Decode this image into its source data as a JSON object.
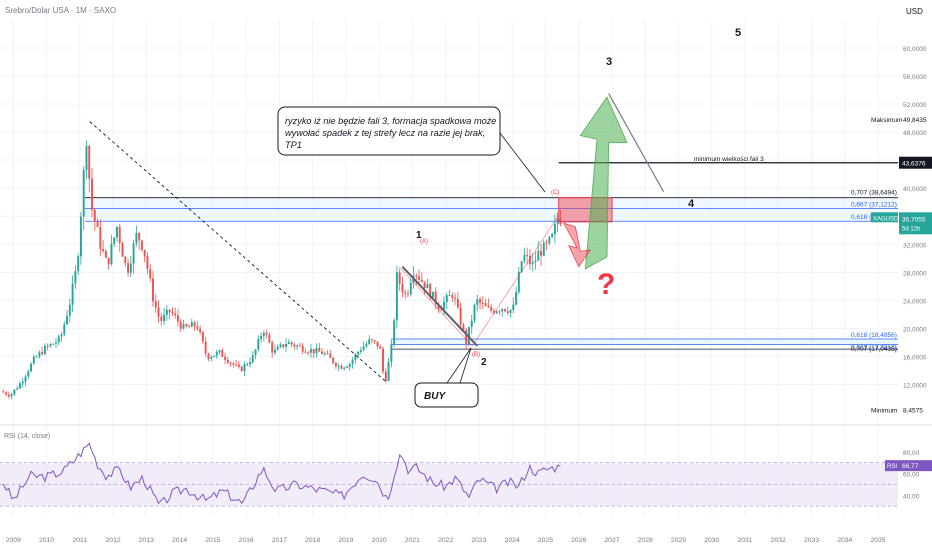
{
  "header": {
    "symbol_title": "Srebro/Dolar USA · 1M · SAXO",
    "currency": "USD"
  },
  "colors": {
    "up": "#26a69a",
    "down": "#ef5350",
    "grid": "#f0f3fa",
    "axis_text": "#787b86",
    "zone_blue": "#2962ff",
    "red_zone": "#f23645",
    "green_arrow": "#4caf50",
    "rsi_line": "#7e57c2",
    "rsi_band": "#ede7f6"
  },
  "chart_data": {
    "type": "candlestick",
    "title": "Srebro/Dolar USA · 1M · SAXO",
    "x_ticks": [
      "2009",
      "2010",
      "2011",
      "2012",
      "2013",
      "2014",
      "2015",
      "2016",
      "2017",
      "2018",
      "2019",
      "2020",
      "2021",
      "2022",
      "2023",
      "2024",
      "2025",
      "2026",
      "2027",
      "2028",
      "2029",
      "2030",
      "2031",
      "2032",
      "2033",
      "2034",
      "2035"
    ],
    "y_ticks": [
      "60,0000",
      "56,0000",
      "52,0000",
      "48,0000",
      "44,0000",
      "40,0000",
      "36,0000",
      "32,0000",
      "28,0000",
      "24,0000",
      "20,0000",
      "16,0000",
      "12,0000"
    ],
    "y_tick_values": [
      60,
      56,
      52,
      48,
      44,
      40,
      36,
      32,
      28,
      24,
      20,
      16,
      12
    ],
    "ylim": [
      6.5,
      64
    ],
    "xlim": [
      2008.6,
      2035.6
    ],
    "price_anchors": [
      [
        2008.7,
        11.0
      ],
      [
        2009.0,
        10.5
      ],
      [
        2009.3,
        12.2
      ],
      [
        2009.7,
        15.5
      ],
      [
        2010.0,
        17.0
      ],
      [
        2010.5,
        18.5
      ],
      [
        2010.8,
        24.0
      ],
      [
        2011.0,
        29.0
      ],
      [
        2011.3,
        48.5
      ],
      [
        2011.4,
        38.0
      ],
      [
        2011.7,
        32.0
      ],
      [
        2011.9,
        29.0
      ],
      [
        2012.2,
        34.5
      ],
      [
        2012.5,
        28.0
      ],
      [
        2012.8,
        33.5
      ],
      [
        2013.0,
        31.5
      ],
      [
        2013.3,
        24.0
      ],
      [
        2013.5,
        21.0
      ],
      [
        2013.8,
        22.5
      ],
      [
        2014.2,
        20.0
      ],
      [
        2014.6,
        20.5
      ],
      [
        2014.9,
        16.0
      ],
      [
        2015.3,
        16.5
      ],
      [
        2015.9,
        14.0
      ],
      [
        2016.3,
        16.0
      ],
      [
        2016.6,
        20.0
      ],
      [
        2016.9,
        16.5
      ],
      [
        2017.3,
        18.0
      ],
      [
        2017.9,
        17.0
      ],
      [
        2018.4,
        16.5
      ],
      [
        2018.9,
        14.5
      ],
      [
        2019.2,
        15.0
      ],
      [
        2019.5,
        17.0
      ],
      [
        2019.8,
        18.2
      ],
      [
        2020.1,
        17.5
      ],
      [
        2020.25,
        12.0
      ],
      [
        2020.5,
        18.5
      ],
      [
        2020.6,
        27.5
      ],
      [
        2020.9,
        24.5
      ],
      [
        2021.1,
        28.5
      ],
      [
        2021.5,
        26.0
      ],
      [
        2021.9,
        23.0
      ],
      [
        2022.3,
        25.0
      ],
      [
        2022.7,
        18.0
      ],
      [
        2023.0,
        24.0
      ],
      [
        2023.4,
        22.5
      ],
      [
        2023.8,
        23.0
      ],
      [
        2024.1,
        22.5
      ],
      [
        2024.4,
        30.5
      ],
      [
        2024.7,
        29.0
      ],
      [
        2024.9,
        31.0
      ],
      [
        2025.1,
        31.5
      ],
      [
        2025.3,
        33.0
      ],
      [
        2025.45,
        35.7
      ]
    ],
    "levels": [
      {
        "label": "Maksimum",
        "value": 49.8435,
        "text": "49,8435"
      },
      {
        "label": "",
        "value": 43.6376,
        "text": "43,6376"
      },
      {
        "label": "",
        "value": 35.7055,
        "text": "35,7055"
      },
      {
        "label": "Minimum",
        "value": 8.4575,
        "text": "8,4575"
      }
    ],
    "fib_upper": [
      {
        "text": "0,707 (38,6494)",
        "value": 38.6494
      },
      {
        "text": "0,667 (37,1212)",
        "value": 37.1212
      },
      {
        "text": "0,618 (35,2902)",
        "value": 35.2902
      }
    ],
    "fib_lower": [
      {
        "text": "0,618 (18,4856)",
        "value": 18.4856
      },
      {
        "text": "0,667 (17,7016)",
        "value": 17.7016
      },
      {
        "text": "0,707 (17,0435)",
        "value": 17.0435
      }
    ],
    "rsi": {
      "label": "RSI (14, close)",
      "value_text": "66,77",
      "ticks": [
        "80,00",
        "60,00",
        "40,00"
      ],
      "tick_values": [
        80,
        60,
        40
      ],
      "anchors": [
        [
          2008.7,
          52
        ],
        [
          2009.0,
          35
        ],
        [
          2009.5,
          58
        ],
        [
          2010.0,
          57
        ],
        [
          2010.5,
          62
        ],
        [
          2011.0,
          78
        ],
        [
          2011.3,
          88
        ],
        [
          2011.5,
          70
        ],
        [
          2011.8,
          58
        ],
        [
          2012.2,
          64
        ],
        [
          2012.5,
          47
        ],
        [
          2012.9,
          56
        ],
        [
          2013.4,
          30
        ],
        [
          2013.8,
          42
        ],
        [
          2014.2,
          46
        ],
        [
          2014.8,
          35
        ],
        [
          2015.3,
          44
        ],
        [
          2015.9,
          32
        ],
        [
          2016.5,
          65
        ],
        [
          2016.9,
          44
        ],
        [
          2017.5,
          50
        ],
        [
          2017.9,
          47
        ],
        [
          2018.5,
          43
        ],
        [
          2018.9,
          39
        ],
        [
          2019.5,
          60
        ],
        [
          2019.9,
          55
        ],
        [
          2020.25,
          36
        ],
        [
          2020.5,
          66
        ],
        [
          2020.65,
          80
        ],
        [
          2020.9,
          62
        ],
        [
          2021.1,
          66
        ],
        [
          2021.6,
          52
        ],
        [
          2022.0,
          48
        ],
        [
          2022.3,
          56
        ],
        [
          2022.7,
          38
        ],
        [
          2023.0,
          55
        ],
        [
          2023.5,
          46
        ],
        [
          2023.9,
          52
        ],
        [
          2024.2,
          48
        ],
        [
          2024.5,
          66
        ],
        [
          2024.8,
          60
        ],
        [
          2025.0,
          64
        ],
        [
          2025.45,
          66.77
        ]
      ]
    }
  },
  "annotations": {
    "callout_text": [
      "ryzyko iż nie będzie fali 3, formacja spadkowa może",
      "wywołać spadek z tej strefy lecz na razie jej brak,",
      "TP1"
    ],
    "buy": "BUY",
    "wave_1": "1",
    "wave_1_sub": "(A)",
    "wave_2": "2",
    "wave_2_sub": "(B)",
    "wave_c": "(C)",
    "wave_3": "3",
    "wave_4": "4",
    "wave_5": "5",
    "wave3_min_label": "minimum wielkości fali 3",
    "question": "?",
    "symbol_tag": "XAGUSD",
    "countdown": "5d 12h",
    "rsi_tag": "RSI"
  }
}
